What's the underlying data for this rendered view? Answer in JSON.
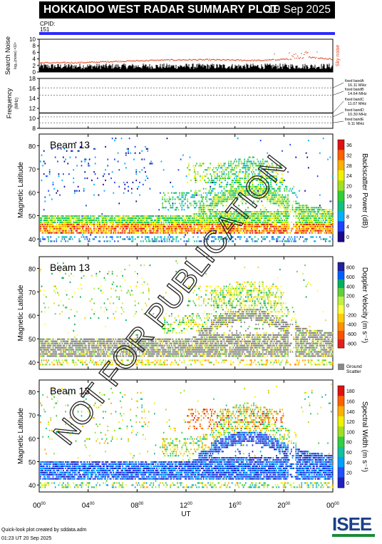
{
  "header": {
    "title": "HOKKAIDO WEST RADAR SUMMARY PLOT",
    "date": "19 Sep 2025"
  },
  "cpid": {
    "label": "CPID:",
    "value": "151"
  },
  "noise_panel": {
    "ylabel_main": "Search Noise",
    "ylabel_sub": "log₁₀(noise) ×10⁴",
    "legend": "Sky noise",
    "yticks": [
      "0",
      "2",
      "4",
      "6",
      "8",
      "10"
    ]
  },
  "freq_panel": {
    "ylabel_main": "Frequency",
    "ylabel_sub": "(MHz)",
    "yticks": [
      "8",
      "10",
      "12",
      "14",
      "16",
      "18"
    ],
    "bands": [
      {
        "label": "fixed bandA",
        "value": "16.11 MHz"
      },
      {
        "label": "fixed bandB",
        "value": "14.64 MHz"
      },
      {
        "label": "fixed bandC",
        "value": "11.07 MHz"
      },
      {
        "label": "fixed bandD",
        "value": "10.30 MHz"
      },
      {
        "label": "fixed bandE",
        "value": "9.11 MHz"
      }
    ]
  },
  "panels": [
    {
      "beam": "Beam 13",
      "ylabel": "Magnetic Latitude",
      "cbar_label": "Backscatter Power (dB)",
      "cbar_ticks": [
        "0",
        "4",
        "8",
        "12",
        "16",
        "20",
        "24",
        "28",
        "32",
        "36"
      ],
      "yticks": [
        "40",
        "50",
        "60",
        "70",
        "80"
      ]
    },
    {
      "beam": "Beam 13",
      "ylabel": "Magnetic Latitude",
      "cbar_label": "Doppler Velocity (m s⁻¹)",
      "cbar_ticks": [
        "-800",
        "-600",
        "-400",
        "-200",
        "0",
        "200",
        "400",
        "600",
        "800"
      ],
      "yticks": [
        "40",
        "50",
        "60",
        "70",
        "80"
      ],
      "ground_scatter": "Ground Scatter"
    },
    {
      "beam": "Beam 13",
      "ylabel": "Magnetic Latitude",
      "cbar_label": "Spectral Width (m s⁻¹)",
      "cbar_ticks": [
        "0",
        "20",
        "40",
        "60",
        "80",
        "100",
        "120",
        "140",
        "160",
        "180"
      ],
      "yticks": [
        "40",
        "50",
        "60",
        "70",
        "80"
      ]
    }
  ],
  "xaxis": {
    "label": "UT",
    "ticks": [
      "00",
      "04",
      "08",
      "12",
      "16",
      "20",
      "00"
    ]
  },
  "watermark": "NOT FOR PUBLICATION",
  "footer": {
    "line1": "Quick-look plot created by sddata.adm",
    "line2": "01:23 UT 20 Sep 2025"
  },
  "logo": {
    "text": "ISEE"
  },
  "colors": {
    "cpid_bar": "#2b2bff",
    "noise": "#e0401a",
    "ground": "#888888"
  },
  "chart_data": [
    {
      "type": "line",
      "title": "Search Noise",
      "ylim": [
        0,
        10
      ],
      "x_range_ut": [
        0,
        24
      ],
      "series": [
        {
          "name": "Sky noise",
          "x": [
            0,
            2,
            4,
            6,
            8,
            10,
            12,
            14,
            16,
            18,
            20,
            22,
            24
          ],
          "values": [
            2.8,
            2.8,
            2.9,
            3.2,
            3.4,
            3.6,
            3.7,
            3.7,
            3.6,
            3.5,
            3.8,
            4.5,
            3.9
          ]
        }
      ]
    },
    {
      "type": "line",
      "title": "Frequency",
      "ylim": [
        8,
        18
      ],
      "x_range_ut": [
        0,
        24
      ],
      "series": [
        {
          "name": "fixed bandC",
          "x": [
            0,
            24
          ],
          "values": [
            11.07,
            11.07
          ]
        }
      ]
    },
    {
      "type": "heatmap",
      "title": "Beam 13 Backscatter Power",
      "ylabel": "Magnetic Latitude",
      "ylim": [
        37,
        85
      ],
      "x_range_ut": [
        0,
        24
      ],
      "zlim": [
        0,
        36
      ]
    },
    {
      "type": "heatmap",
      "title": "Beam 13 Doppler Velocity",
      "ylabel": "Magnetic Latitude",
      "ylim": [
        37,
        85
      ],
      "x_range_ut": [
        0,
        24
      ],
      "zlim": [
        -800,
        800
      ]
    },
    {
      "type": "heatmap",
      "title": "Beam 13 Spectral Width",
      "ylabel": "Magnetic Latitude",
      "ylim": [
        37,
        85
      ],
      "x_range_ut": [
        0,
        24
      ],
      "zlim": [
        0,
        180
      ]
    }
  ]
}
